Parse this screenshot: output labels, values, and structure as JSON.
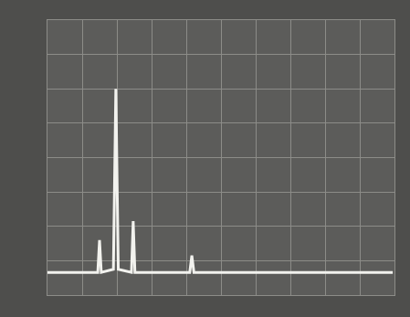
{
  "chart_data": {
    "type": "line",
    "x": [
      0.0,
      1.45,
      1.5,
      1.55,
      1.9,
      1.97,
      2.04,
      2.42,
      2.47,
      2.52,
      4.1,
      4.16,
      4.22,
      9.95
    ],
    "values": [
      0.66,
      0.66,
      1.6,
      0.66,
      0.75,
      6.0,
      0.75,
      0.66,
      2.15,
      0.66,
      0.66,
      1.15,
      0.66,
      0.66
    ],
    "color": "#f2f2ee",
    "xlim": [
      0,
      10
    ],
    "ylim": [
      0,
      8
    ],
    "xticks": [
      0,
      1,
      2,
      3,
      4,
      5,
      6,
      7,
      8,
      9,
      10
    ],
    "yticks": [
      0,
      1,
      2,
      3,
      4,
      5,
      6,
      7,
      8
    ],
    "grid": true,
    "tick_labels": false
  }
}
